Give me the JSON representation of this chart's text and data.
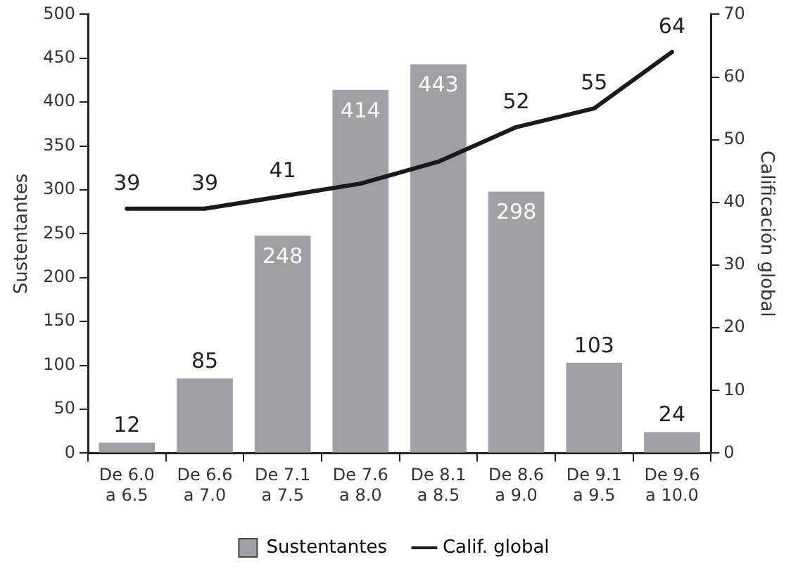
{
  "chart_data": {
    "type": "bar",
    "categories": [
      "De 6.0\na 6.5",
      "De 6.6\na 7.0",
      "De 7.1\na 7.5",
      "De 7.6\na 8.0",
      "De 8.1\na 8.5",
      "De 8.6\na 9.0",
      "De 9.1\na 9.5",
      "De 9.6\na 10.0"
    ],
    "series": [
      {
        "name": "Sustentantes",
        "color": "#a0a0a4",
        "values": [
          12,
          85,
          248,
          414,
          443,
          298,
          103,
          24
        ],
        "value_labels": [
          "12",
          "85",
          "248",
          "414",
          "443",
          "298",
          "103",
          "24"
        ]
      },
      {
        "name": "Calif. global",
        "type": "line",
        "axis": "y2",
        "color": "#1a1a1a",
        "values": [
          39,
          39,
          41,
          43,
          46.5,
          52,
          55,
          64
        ],
        "value_labels": [
          "39",
          "39",
          "41",
          null,
          null,
          "52",
          "55",
          "64"
        ]
      }
    ],
    "ylabel": "Sustentantes",
    "y2label": "Calificación global",
    "ylim": [
      0,
      500
    ],
    "yticks": [
      0,
      50,
      100,
      150,
      200,
      250,
      300,
      350,
      400,
      450,
      500
    ],
    "y2lim": [
      0,
      70
    ],
    "y2ticks": [
      0,
      10,
      20,
      30,
      40,
      50,
      60,
      70
    ],
    "grid": false,
    "legend": "bottom",
    "marker": "none",
    "line_style": "solid"
  }
}
